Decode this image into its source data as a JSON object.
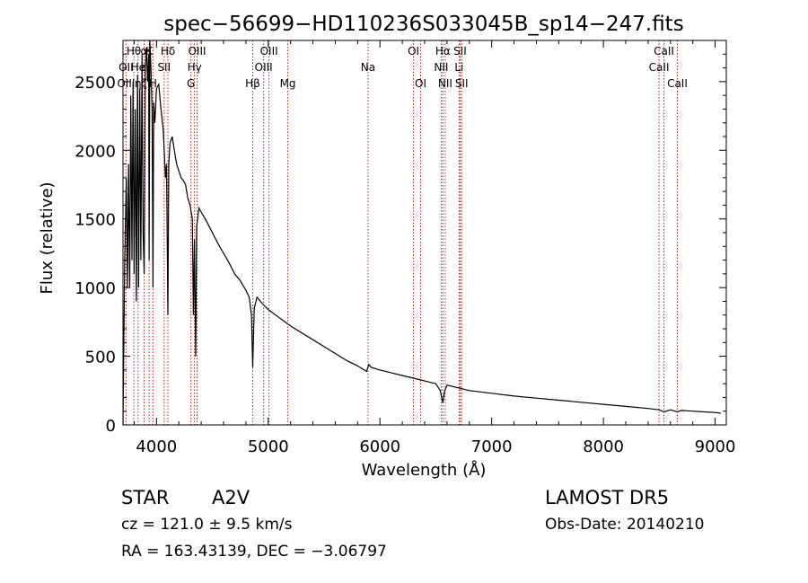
{
  "chart_data": {
    "type": "line",
    "title": "spec−56699−HD110236S033045B_sp14−247.fits",
    "xlabel": "Wavelength (Å)",
    "ylabel": "Flux (relative)",
    "xlim": [
      3700,
      9100
    ],
    "ylim": [
      0,
      2800
    ],
    "xticks": [
      4000,
      5000,
      6000,
      7000,
      8000,
      9000
    ],
    "xtick_labels": [
      "4000",
      "5000",
      "6000",
      "7000",
      "8000",
      "9000"
    ],
    "yticks": [
      0,
      500,
      1000,
      1500,
      2000,
      2500
    ],
    "ytick_labels": [
      "0",
      "500",
      "1000",
      "1500",
      "2000",
      "2500"
    ],
    "grid": false,
    "series": [
      {
        "x": [
          3700,
          3715,
          3730,
          3740,
          3750,
          3760,
          3770,
          3780,
          3790,
          3800,
          3810,
          3820,
          3830,
          3840,
          3850,
          3860,
          3870,
          3880,
          3890,
          3900,
          3910,
          3920,
          3930,
          3934,
          3940,
          3950,
          3960,
          3968,
          3975,
          3985,
          4000,
          4020,
          4040,
          4060,
          4080,
          4090,
          4102,
          4110,
          4120,
          4140,
          4160,
          4180,
          4200,
          4220,
          4240,
          4260,
          4280,
          4300,
          4320,
          4330,
          4340,
          4350,
          4360,
          4380,
          4400,
          4450,
          4500,
          4550,
          4600,
          4650,
          4700,
          4750,
          4800,
          4830,
          4850,
          4861,
          4875,
          4900,
          4950,
          5000,
          5100,
          5200,
          5300,
          5400,
          5500,
          5600,
          5700,
          5800,
          5880,
          5900,
          5920,
          6000,
          6100,
          6200,
          6300,
          6400,
          6500,
          6540,
          6563,
          6580,
          6600,
          6700,
          6800,
          7000,
          7200,
          7400,
          7600,
          7800,
          8000,
          8200,
          8400,
          8500,
          8542,
          8600,
          8662,
          8700,
          8800,
          8900,
          9000,
          9050
        ],
        "y": [
          0,
          1200,
          1800,
          1000,
          1900,
          1000,
          2400,
          1200,
          2500,
          1100,
          2300,
          900,
          2550,
          1000,
          2450,
          1200,
          2700,
          1400,
          1100,
          2600,
          2750,
          2500,
          2700,
          1200,
          2800,
          2600,
          2300,
          1000,
          2350,
          2200,
          2450,
          2480,
          2300,
          2150,
          1800,
          1900,
          800,
          1900,
          2050,
          2100,
          2000,
          1900,
          1850,
          1800,
          1780,
          1750,
          1650,
          1600,
          1500,
          800,
          1350,
          500,
          1450,
          1580,
          1550,
          1480,
          1400,
          1320,
          1250,
          1180,
          1100,
          1050,
          980,
          930,
          800,
          420,
          850,
          930,
          880,
          840,
          780,
          720,
          670,
          620,
          570,
          520,
          470,
          430,
          390,
          440,
          420,
          400,
          380,
          360,
          340,
          320,
          300,
          250,
          160,
          250,
          290,
          270,
          250,
          230,
          210,
          195,
          180,
          165,
          150,
          135,
          120,
          110,
          95,
          110,
          95,
          105,
          100,
          95,
          90,
          85
        ]
      }
    ],
    "lines": [
      {
        "x": 3727
      },
      {
        "x": 3797
      },
      {
        "x": 3835
      },
      {
        "x": 3889
      },
      {
        "x": 3934
      },
      {
        "x": 3968
      },
      {
        "x": 4102
      },
      {
        "x": 4068
      },
      {
        "x": 4308
      },
      {
        "x": 4340
      },
      {
        "x": 4363
      },
      {
        "x": 4861
      },
      {
        "x": 4959
      },
      {
        "x": 5007
      },
      {
        "x": 5175
      },
      {
        "x": 5893
      },
      {
        "x": 6300
      },
      {
        "x": 6364
      },
      {
        "x": 6548
      },
      {
        "x": 6563
      },
      {
        "x": 6584
      },
      {
        "x": 6708
      },
      {
        "x": 6717
      },
      {
        "x": 6731
      },
      {
        "x": 8498
      },
      {
        "x": 8542
      },
      {
        "x": 8662
      }
    ],
    "line_labels": [
      {
        "text": "Hθ",
        "x": 3797,
        "row": 0
      },
      {
        "text": "α",
        "x": 3889,
        "row": 0
      },
      {
        "text": "K",
        "x": 3934,
        "row": 0
      },
      {
        "text": "Hδ",
        "x": 4102,
        "row": 0
      },
      {
        "text": "OIII",
        "x": 4363,
        "row": 0
      },
      {
        "text": "OIII",
        "x": 5007,
        "row": 0
      },
      {
        "text": "OI",
        "x": 6300,
        "row": 0
      },
      {
        "text": "Hα",
        "x": 6563,
        "row": 0
      },
      {
        "text": "SII",
        "x": 6717,
        "row": 0
      },
      {
        "text": "CaII",
        "x": 8542,
        "row": 0
      },
      {
        "text": "OII",
        "x": 3727,
        "row": 1
      },
      {
        "text": "He",
        "x": 3835,
        "row": 1
      },
      {
        "text": "ε",
        "x": 3889,
        "row": 1
      },
      {
        "text": "SII",
        "x": 4068,
        "row": 1
      },
      {
        "text": "Hγ",
        "x": 4340,
        "row": 1
      },
      {
        "text": "OIII",
        "x": 4959,
        "row": 1
      },
      {
        "text": "Na",
        "x": 5893,
        "row": 1
      },
      {
        "text": "NII",
        "x": 6548,
        "row": 1
      },
      {
        "text": "Li",
        "x": 6708,
        "row": 1
      },
      {
        "text": "CaII",
        "x": 8498,
        "row": 1
      },
      {
        "text": "OIII",
        "x": 3727,
        "row": 2
      },
      {
        "text": "η",
        "x": 3835,
        "row": 2
      },
      {
        "text": "ζ",
        "x": 3889,
        "row": 2
      },
      {
        "text": "H",
        "x": 3968,
        "row": 2
      },
      {
        "text": "G",
        "x": 4308,
        "row": 2
      },
      {
        "text": "Hβ",
        "x": 4861,
        "row": 2
      },
      {
        "text": "Mg",
        "x": 5175,
        "row": 2
      },
      {
        "text": "OI",
        "x": 6364,
        "row": 2
      },
      {
        "text": "NII",
        "x": 6584,
        "row": 2
      },
      {
        "text": "SII",
        "x": 6731,
        "row": 2
      },
      {
        "text": "CaII",
        "x": 8662,
        "row": 2
      }
    ],
    "line_color": "#000000",
    "marker_line_color": "#b22222"
  },
  "info": {
    "object_type": "STAR",
    "subclass": "A2V",
    "survey": "LAMOST DR5",
    "cz": "cz = 121.0 ± 9.5 km/s",
    "obs_date": "Obs-Date: 20140210",
    "radec": "RA = 163.43139, DEC =  −3.06797"
  }
}
